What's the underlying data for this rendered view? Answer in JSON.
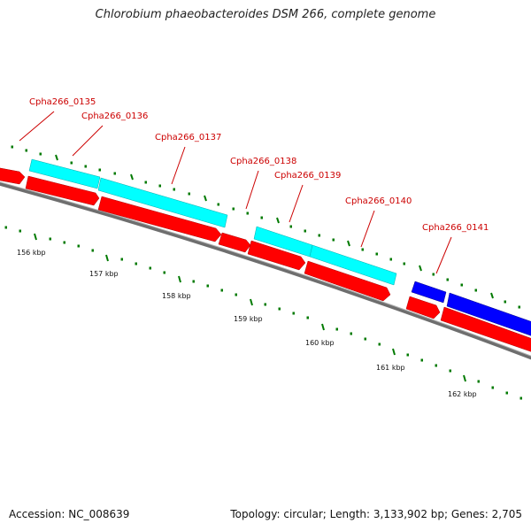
{
  "title": "Chlorobium phaeobacteroides DSM 266, complete genome",
  "footer": {
    "accession": "Accession: NC_008639",
    "info": "Topology: circular; Length: 3,133,902 bp; Genes: 2,705"
  },
  "colors": {
    "backbone": "#7a7a7a",
    "forward_strand_genes": "#00ffff",
    "reverse_strand_genes": "#ff0000",
    "highlight_genes": "#0000ff",
    "gene_labels": "#cc0000",
    "tick_marks": "#006400"
  },
  "scale_labels": [
    "156 kbp",
    "157 kbp",
    "158 kbp",
    "159 kbp",
    "160 kbp",
    "161 kbp",
    "162 kbp"
  ],
  "gene_labels": [
    "Cpha266_0135",
    "Cpha266_0136",
    "Cpha266_0137",
    "Cpha266_0138",
    "Cpha266_0139",
    "Cpha266_0140",
    "Cpha266_0141"
  ]
}
